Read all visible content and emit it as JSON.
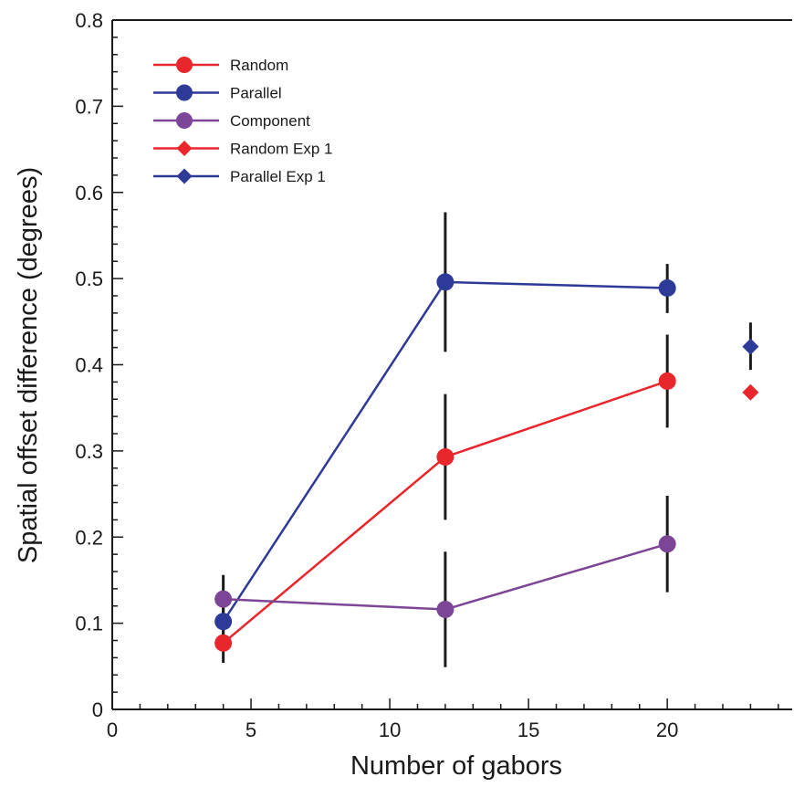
{
  "chart_data": {
    "type": "line",
    "xlabel": "Number of gabors",
    "ylabel": "Spatial offset difference (degrees)",
    "xlim": [
      0,
      24.5
    ],
    "ylim": [
      0,
      0.8
    ],
    "x_ticks": [
      0,
      5,
      10,
      15,
      20
    ],
    "x_tick_labels": [
      "0",
      "5",
      "10",
      "15",
      "20"
    ],
    "y_ticks": [
      0,
      0.1,
      0.2,
      0.3,
      0.4,
      0.5,
      0.6,
      0.7,
      0.8
    ],
    "y_tick_labels": [
      "0",
      "0.1",
      "0.2",
      "0.3",
      "0.4",
      "0.5",
      "0.6",
      "0.7",
      "0.8"
    ],
    "grid": false,
    "legend_position": "top-left",
    "series": [
      {
        "name": "Random",
        "color": "#e8262c",
        "marker": "circle",
        "connected": true,
        "points": [
          {
            "x": 4,
            "y": 0.077,
            "err_low": 0.054,
            "err_high": 0.1
          },
          {
            "x": 12,
            "y": 0.293,
            "err_low": 0.22,
            "err_high": 0.366
          },
          {
            "x": 20,
            "y": 0.381,
            "err_low": 0.327,
            "err_high": 0.435
          }
        ]
      },
      {
        "name": "Parallel",
        "color": "#2e3a97",
        "marker": "circle",
        "connected": true,
        "points": [
          {
            "x": 4,
            "y": 0.102,
            "err_low": 0.078,
            "err_high": 0.126
          },
          {
            "x": 12,
            "y": 0.496,
            "err_low": 0.415,
            "err_high": 0.577
          },
          {
            "x": 20,
            "y": 0.489,
            "err_low": 0.46,
            "err_high": 0.517
          }
        ]
      },
      {
        "name": "Component",
        "color": "#7d4596",
        "marker": "circle",
        "connected": true,
        "points": [
          {
            "x": 4,
            "y": 0.128,
            "err_low": 0.1,
            "err_high": 0.156
          },
          {
            "x": 12,
            "y": 0.116,
            "err_low": 0.049,
            "err_high": 0.183
          },
          {
            "x": 20,
            "y": 0.192,
            "err_low": 0.136,
            "err_high": 0.248
          }
        ]
      },
      {
        "name": "Random Exp 1",
        "color": "#e8262c",
        "marker": "diamond",
        "connected": false,
        "points": [
          {
            "x": 23,
            "y": 0.368
          }
        ]
      },
      {
        "name": "Parallel Exp 1",
        "color": "#2e3a97",
        "marker": "diamond",
        "connected": false,
        "points": [
          {
            "x": 23,
            "y": 0.421,
            "err_low": 0.394,
            "err_high": 0.449
          }
        ]
      }
    ]
  }
}
